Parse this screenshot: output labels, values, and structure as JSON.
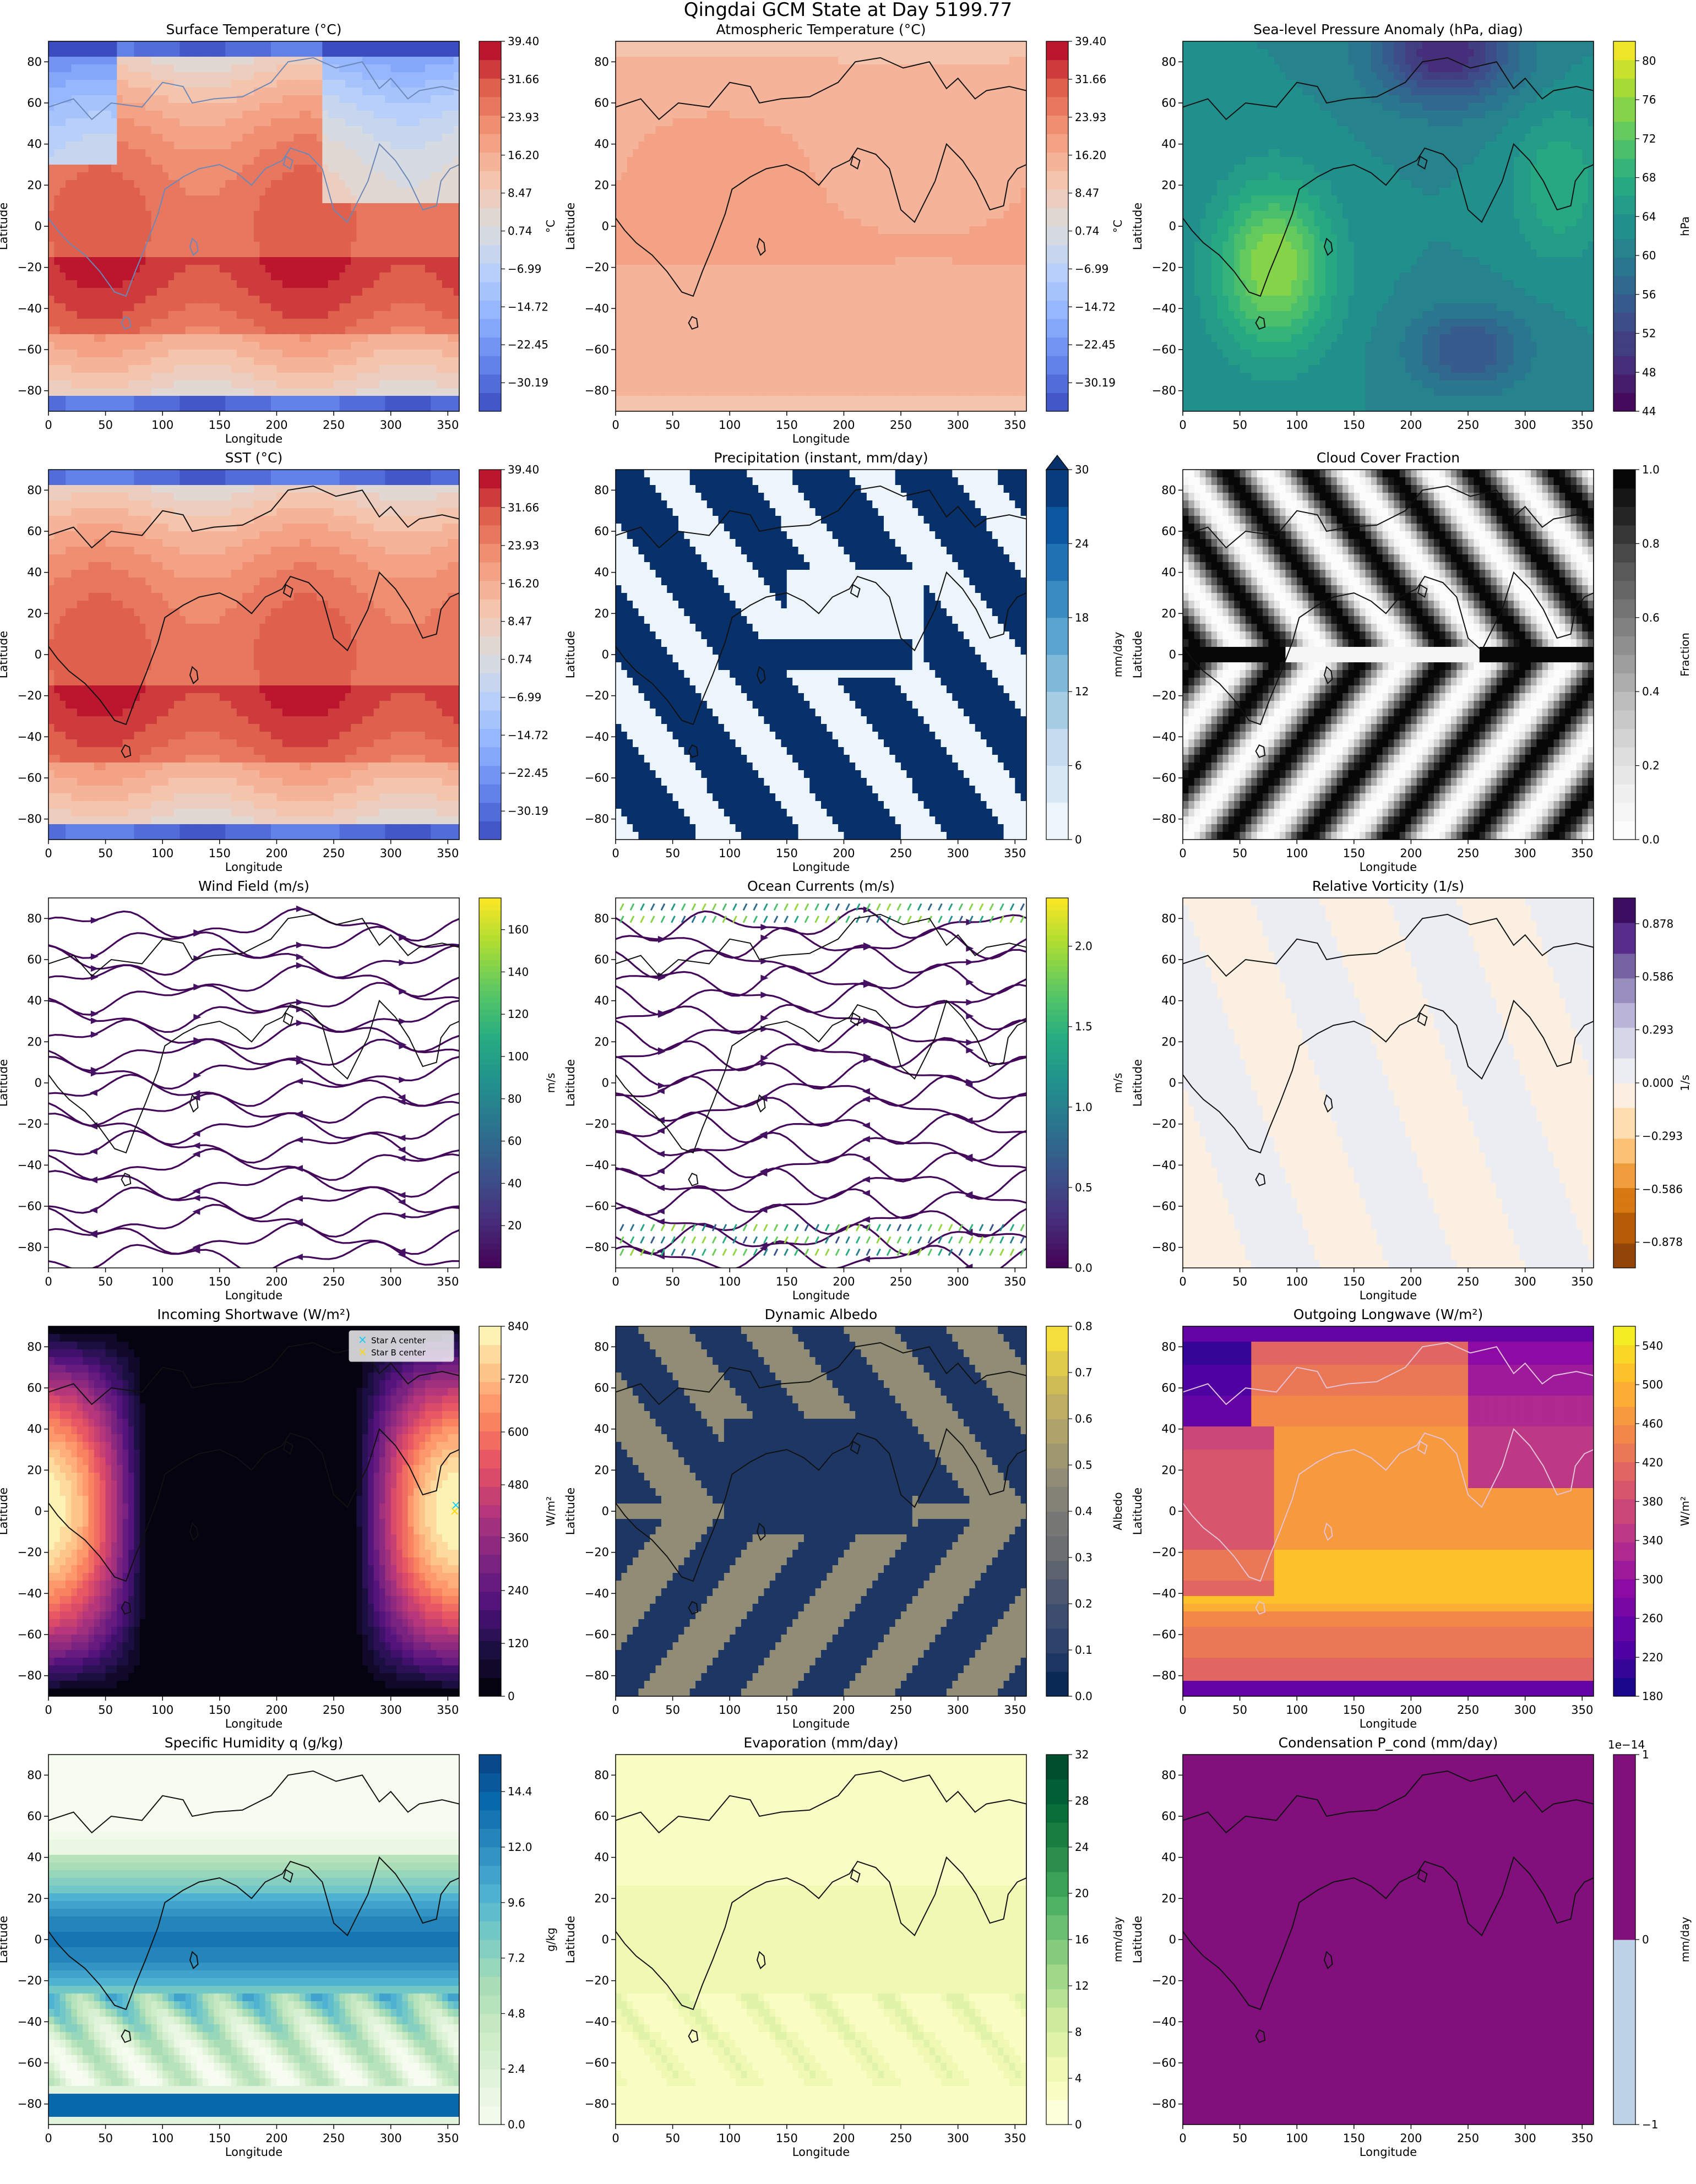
{
  "figure_title": "Qingdai GCM State at Day 5199.77",
  "chart_data": [
    {
      "id": "surface-temperature",
      "type": "heatmap",
      "title": "Surface Temperature (°C)",
      "xlabel": "Longitude",
      "ylabel": "Latitude",
      "xlim": [
        0,
        360
      ],
      "ylim": [
        -90,
        90
      ],
      "x_ticks": [
        0,
        50,
        100,
        150,
        200,
        250,
        300,
        350
      ],
      "y_ticks": [
        -80,
        -60,
        -40,
        -20,
        0,
        20,
        40,
        60,
        80
      ],
      "colorbar": {
        "cmap": "coolwarm",
        "unit": "°C",
        "vmin": -36,
        "vmax": 39.4,
        "levels": 20,
        "ticks": [
          "39.40",
          "31.66",
          "23.93",
          "16.20",
          "8.47",
          "0.74",
          "−6.99",
          "−14.72",
          "−22.45",
          "−30.19"
        ]
      }
    },
    {
      "id": "atmospheric-temperature",
      "type": "heatmap",
      "title": "Atmospheric Temperature (°C)",
      "xlabel": "Longitude",
      "ylabel": "Latitude",
      "xlim": [
        0,
        360
      ],
      "ylim": [
        -90,
        90
      ],
      "x_ticks": [
        0,
        50,
        100,
        150,
        200,
        250,
        300,
        350
      ],
      "y_ticks": [
        -80,
        -60,
        -40,
        -20,
        0,
        20,
        40,
        60,
        80
      ],
      "colorbar": {
        "cmap": "coolwarm",
        "unit": "°C",
        "vmin": -36,
        "vmax": 39.4,
        "levels": 20,
        "ticks": [
          "39.40",
          "31.66",
          "23.93",
          "16.20",
          "8.47",
          "0.74",
          "−6.99",
          "−14.72",
          "−22.45",
          "−30.19"
        ]
      }
    },
    {
      "id": "slp-anomaly",
      "type": "heatmap",
      "title": "Sea-level Pressure Anomaly (hPa, diag)",
      "xlabel": "",
      "ylabel": "Latitude",
      "xlim": [
        0,
        360
      ],
      "ylim": [
        -90,
        90
      ],
      "x_ticks": [
        0,
        50,
        100,
        150,
        200,
        250,
        300,
        350
      ],
      "y_ticks": [
        -80,
        -60,
        -40,
        -20,
        0,
        20,
        40,
        60,
        80
      ],
      "colorbar": {
        "cmap": "viridis",
        "unit": "hPa",
        "vmin": 44,
        "vmax": 82,
        "levels": 19,
        "ticks": [
          "80",
          "76",
          "72",
          "68",
          "64",
          "60",
          "56",
          "52",
          "48",
          "44"
        ]
      }
    },
    {
      "id": "sst",
      "type": "heatmap",
      "title": "SST (°C)",
      "xlabel": "Longitude",
      "ylabel": "Latitude",
      "xlim": [
        0,
        360
      ],
      "ylim": [
        -90,
        90
      ],
      "x_ticks": [
        0,
        50,
        100,
        150,
        200,
        250,
        300,
        350
      ],
      "y_ticks": [
        -80,
        -60,
        -40,
        -20,
        0,
        20,
        40,
        60,
        80
      ],
      "colorbar": {
        "cmap": "coolwarm",
        "unit": "",
        "vmin": -36,
        "vmax": 39.4,
        "levels": 20,
        "ticks": [
          "39.40",
          "31.66",
          "23.93",
          "16.20",
          "8.47",
          "0.74",
          "−6.99",
          "−14.72",
          "−22.45",
          "−30.19"
        ]
      }
    },
    {
      "id": "precipitation",
      "type": "heatmap",
      "title": "Precipitation (instant, mm/day)",
      "xlabel": "Longitude",
      "ylabel": "Latitude",
      "xlim": [
        0,
        360
      ],
      "ylim": [
        -90,
        90
      ],
      "x_ticks": [
        0,
        50,
        100,
        150,
        200,
        250,
        300,
        350
      ],
      "y_ticks": [
        -80,
        -60,
        -40,
        -20,
        0,
        20,
        40,
        60,
        80
      ],
      "colorbar": {
        "cmap": "blues",
        "unit": "mm/day",
        "vmin": 0,
        "vmax": 30,
        "levels": 10,
        "extend_max": true,
        "ticks": [
          "30",
          "24",
          "18",
          "12",
          "6",
          "0"
        ]
      }
    },
    {
      "id": "cloud-cover",
      "type": "heatmap",
      "title": "Cloud Cover Fraction",
      "xlabel": "Longitude",
      "ylabel": "Latitude",
      "xlim": [
        0,
        360
      ],
      "ylim": [
        -90,
        90
      ],
      "x_ticks": [
        0,
        50,
        100,
        150,
        200,
        250,
        300,
        350
      ],
      "y_ticks": [
        -80,
        -60,
        -40,
        -20,
        0,
        20,
        40,
        60,
        80
      ],
      "colorbar": {
        "cmap": "greys",
        "unit": "Fraction",
        "vmin": 0,
        "vmax": 1,
        "levels": 20,
        "ticks": [
          "1.0",
          "0.8",
          "0.6",
          "0.4",
          "0.2",
          "0.0"
        ]
      }
    },
    {
      "id": "wind-field",
      "type": "streamplot",
      "title": "Wind Field (m/s)",
      "xlabel": "Longitude",
      "ylabel": "Latitude",
      "xlim": [
        0,
        360
      ],
      "ylim": [
        -90,
        90
      ],
      "x_ticks": [
        0,
        50,
        100,
        150,
        200,
        250,
        300,
        350
      ],
      "y_ticks": [
        -80,
        -60,
        -40,
        -20,
        0,
        20,
        40,
        60,
        80
      ],
      "colorbar": {
        "cmap": "viridis",
        "unit": "m/s",
        "vmin": 0,
        "vmax": 175,
        "levels": 0,
        "ticks": [
          "160",
          "140",
          "120",
          "100",
          "80",
          "60",
          "40",
          "20"
        ]
      }
    },
    {
      "id": "ocean-currents",
      "type": "streamplot",
      "title": "Ocean Currents (m/s)",
      "xlabel": "Longitude",
      "ylabel": "Latitude",
      "xlim": [
        0,
        360
      ],
      "ylim": [
        -90,
        90
      ],
      "x_ticks": [
        0,
        50,
        100,
        150,
        200,
        250,
        300,
        350
      ],
      "y_ticks": [
        -80,
        -60,
        -40,
        -20,
        0,
        20,
        40,
        60,
        80
      ],
      "colorbar": {
        "cmap": "viridis",
        "unit": "m/s",
        "vmin": 0,
        "vmax": 2.3,
        "levels": 0,
        "ticks": [
          "2.0",
          "1.5",
          "1.0",
          "0.5",
          "0.0"
        ]
      }
    },
    {
      "id": "relative-vorticity",
      "type": "heatmap",
      "title": "Relative Vorticity (1/s)",
      "xlabel": "Longitude",
      "ylabel": "Latitude",
      "xlim": [
        0,
        360
      ],
      "ylim": [
        -90,
        90
      ],
      "x_ticks": [
        0,
        50,
        100,
        150,
        200,
        250,
        300,
        350
      ],
      "y_ticks": [
        -80,
        -60,
        -40,
        -20,
        0,
        20,
        40,
        60,
        80
      ],
      "colorbar": {
        "cmap": "puor",
        "unit": "1/s",
        "vmin": -1.02,
        "vmax": 1.02,
        "levels": 14,
        "ticks": [
          "0.878",
          "0.586",
          "0.293",
          "0.000",
          "−0.293",
          "−0.586",
          "−0.878"
        ]
      }
    },
    {
      "id": "incoming-shortwave",
      "type": "heatmap",
      "title": "Incoming Shortwave (W/m²)",
      "xlabel": "Longitude",
      "ylabel": "Latitude",
      "xlim": [
        0,
        360
      ],
      "ylim": [
        -90,
        90
      ],
      "x_ticks": [
        0,
        50,
        100,
        150,
        200,
        250,
        300,
        350
      ],
      "y_ticks": [
        -80,
        -60,
        -40,
        -20,
        0,
        20,
        40,
        60,
        80
      ],
      "legend": [
        "Star A center",
        "Star B center"
      ],
      "star_a_center": [
        357,
        3
      ],
      "star_b_center": [
        356,
        0
      ],
      "colorbar": {
        "cmap": "magma",
        "unit": "W/m²",
        "vmin": 0,
        "vmax": 840,
        "levels": 21,
        "ticks": [
          "840",
          "720",
          "600",
          "480",
          "360",
          "240",
          "120",
          "0"
        ]
      }
    },
    {
      "id": "dynamic-albedo",
      "type": "heatmap",
      "title": "Dynamic Albedo",
      "xlabel": "Longitude",
      "ylabel": "Latitude",
      "xlim": [
        0,
        360
      ],
      "ylim": [
        -90,
        90
      ],
      "x_ticks": [
        0,
        50,
        100,
        150,
        200,
        250,
        300,
        350
      ],
      "y_ticks": [
        -80,
        -60,
        -40,
        -20,
        0,
        20,
        40,
        60,
        80
      ],
      "colorbar": {
        "cmap": "cividis",
        "unit": "Albedo",
        "vmin": 0,
        "vmax": 0.8,
        "levels": 16,
        "ticks": [
          "0.8",
          "0.7",
          "0.6",
          "0.5",
          "0.4",
          "0.3",
          "0.2",
          "0.1",
          "0.0"
        ]
      }
    },
    {
      "id": "outgoing-longwave",
      "type": "heatmap",
      "title": "Outgoing Longwave (W/m²)",
      "xlabel": "Longitude",
      "ylabel": "Latitude",
      "xlim": [
        0,
        360
      ],
      "ylim": [
        -90,
        90
      ],
      "x_ticks": [
        0,
        50,
        100,
        150,
        200,
        250,
        300,
        350
      ],
      "y_ticks": [
        -80,
        -60,
        -40,
        -20,
        0,
        20,
        40,
        60,
        80
      ],
      "colorbar": {
        "cmap": "plasma",
        "unit": "W/m²",
        "vmin": 180,
        "vmax": 560,
        "levels": 19,
        "ticks": [
          "540",
          "500",
          "460",
          "420",
          "380",
          "340",
          "300",
          "260",
          "220",
          "180"
        ]
      }
    },
    {
      "id": "specific-humidity",
      "type": "heatmap",
      "title": "Specific Humidity q (g/kg)",
      "xlabel": "Longitude",
      "ylabel": "Latitude",
      "xlim": [
        0,
        360
      ],
      "ylim": [
        -90,
        90
      ],
      "x_ticks": [
        0,
        50,
        100,
        150,
        200,
        250,
        300,
        350
      ],
      "y_ticks": [
        -80,
        -60,
        -40,
        -20,
        0,
        20,
        40,
        60,
        80
      ],
      "colorbar": {
        "cmap": "gnbu",
        "unit": "g/kg",
        "vmin": 0,
        "vmax": 16,
        "levels": 20,
        "ticks": [
          "14.4",
          "12.0",
          "9.6",
          "7.2",
          "4.8",
          "2.4",
          "0.0"
        ]
      }
    },
    {
      "id": "evaporation",
      "type": "heatmap",
      "title": "Evaporation (mm/day)",
      "xlabel": "Longitude",
      "ylabel": "Latitude",
      "xlim": [
        0,
        360
      ],
      "ylim": [
        -90,
        90
      ],
      "x_ticks": [
        0,
        50,
        100,
        150,
        200,
        250,
        300,
        350
      ],
      "y_ticks": [
        -80,
        -60,
        -40,
        -20,
        0,
        20,
        40,
        60,
        80
      ],
      "colorbar": {
        "cmap": "ylgn",
        "unit": "mm/day",
        "vmin": 0,
        "vmax": 32,
        "levels": 16,
        "ticks": [
          "32",
          "28",
          "24",
          "20",
          "16",
          "12",
          "8",
          "4",
          "0"
        ]
      }
    },
    {
      "id": "condensation",
      "type": "heatmap",
      "title": "Condensation P_cond (mm/day)",
      "xlabel": "Longitude",
      "ylabel": "Latitude",
      "xlim": [
        0,
        360
      ],
      "ylim": [
        -90,
        90
      ],
      "x_ticks": [
        0,
        50,
        100,
        150,
        200,
        250,
        300,
        350
      ],
      "y_ticks": [
        -80,
        -60,
        -40,
        -20,
        0,
        20,
        40,
        60,
        80
      ],
      "uniform_value": 0,
      "colorbar": {
        "cmap": "bupu2",
        "unit": "mm/day",
        "vmin": -1,
        "vmax": 1,
        "levels": 2,
        "exponent": "1e−14",
        "ticks": [
          "1",
          "0",
          "−1"
        ]
      }
    }
  ]
}
